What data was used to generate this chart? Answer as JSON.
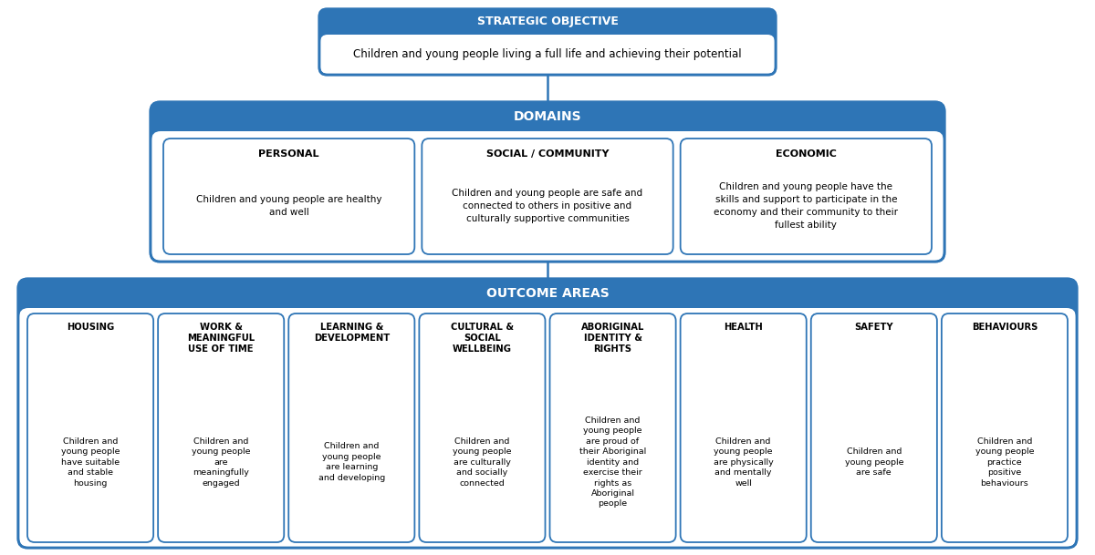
{
  "background_color": "#ffffff",
  "border_color": "#2E75B6",
  "header_fill": "#2E75B6",
  "header_text_color": "#ffffff",
  "body_fill": "#ffffff",
  "body_text_color": "#000000",
  "strategic_objective": {
    "header": "STRATEGIC OBJECTIVE",
    "body": "Children and young people living a full life and achieving their potential"
  },
  "domains_header": "DOMAINS",
  "domains": [
    {
      "title": "PERSONAL",
      "body": "Children and young people are healthy\nand well"
    },
    {
      "title": "SOCIAL / COMMUNITY",
      "body": "Children and young people are safe and\nconnected to others in positive and\nculturally supportive communities"
    },
    {
      "title": "ECONOMIC",
      "body": "Children and young people have the\nskills and support to participate in the\neconomy and their community to their\nfullest ability"
    }
  ],
  "outcomes_header": "OUTCOME AREAS",
  "outcomes": [
    {
      "title": "HOUSING",
      "body": "Children and\nyoung people\nhave suitable\nand stable\nhousing"
    },
    {
      "title": "WORK &\nMEANINGFUL\nUSE OF TIME",
      "body": "Children and\nyoung people\nare\nmeaningfully\nengaged"
    },
    {
      "title": "LEARNING &\nDEVELOPMENT",
      "body": "Children and\nyoung people\nare learning\nand developing"
    },
    {
      "title": "CULTURAL &\nSOCIAL\nWELLBEING",
      "body": "Children and\nyoung people\nare culturally\nand socially\nconnected"
    },
    {
      "title": "ABORIGINAL\nIDENTITY &\nRIGHTS",
      "body": "Children and\nyoung people\nare proud of\ntheir Aboriginal\nidentity and\nexercise their\nrights as\nAboriginal\npeople"
    },
    {
      "title": "HEALTH",
      "body": "Children and\nyoung people\nare physically\nand mentally\nwell"
    },
    {
      "title": "SAFETY",
      "body": "Children and\nyoung people\nare safe"
    },
    {
      "title": "BEHAVIOURS",
      "body": "Children and\nyoung people\npractice\npositive\nbehaviours"
    }
  ]
}
